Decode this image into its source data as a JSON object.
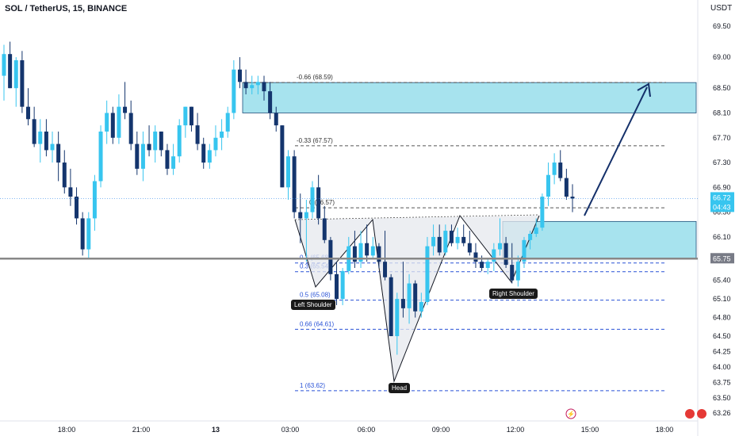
{
  "header": {
    "title": "SOL / TetherUS, 15, BINANCE",
    "currency": "USDT"
  },
  "colors": {
    "up": "#37c5ef",
    "down": "#14356d",
    "zone": "#a7e3ee",
    "zone_border": "#1f4e7a",
    "fib": "#2952d6",
    "price_line": "#3b8eea"
  },
  "badges": {
    "current_price": "66.72",
    "countdown": "04:43",
    "support": "65.75"
  },
  "labels": {
    "left_shoulder": "Left Shoulder",
    "head": "Head",
    "right_shoulder": "Right Shoulder"
  },
  "chart_data": {
    "type": "candlestick",
    "y_ticks": [
      "69.50",
      "69.00",
      "68.50",
      "68.10",
      "67.70",
      "67.30",
      "66.90",
      "66.50",
      "66.10",
      "65.75",
      "65.40",
      "65.10",
      "64.80",
      "64.50",
      "64.25",
      "64.00",
      "63.75",
      "63.50",
      "63.26"
    ],
    "x_ticks": [
      "18:00",
      "21:00",
      "13",
      "03:00",
      "06:00",
      "09:00",
      "12:00",
      "15:00",
      "18:00"
    ],
    "fib_levels": [
      {
        "label": "-0.66 (68.59)",
        "price": 68.59
      },
      {
        "label": "-0.33 (67.57)",
        "price": 67.57
      },
      {
        "label": "0 (66.57)",
        "price": 66.57
      },
      {
        "label": "0.3 (65.68)",
        "price": 65.68
      },
      {
        "label": "0.3 (65.54)",
        "price": 65.54
      },
      {
        "label": "0.5 (65.08)",
        "price": 65.08
      },
      {
        "label": "0.66 (64.61)",
        "price": 64.61
      },
      {
        "label": "1 (63.62)",
        "price": 63.62
      }
    ],
    "zones": [
      {
        "name": "target",
        "top": 68.59,
        "bottom": 68.1
      },
      {
        "name": "breakout",
        "top": 66.35,
        "bottom": 65.75
      }
    ],
    "current_price": 66.72,
    "support_price": 65.75,
    "candles": [
      {
        "o": 68.7,
        "h": 69.2,
        "l": 68.3,
        "c": 69.05
      },
      {
        "o": 69.05,
        "h": 69.25,
        "l": 68.5,
        "c": 68.5
      },
      {
        "o": 68.5,
        "h": 69.0,
        "l": 68.2,
        "c": 68.95
      },
      {
        "o": 68.95,
        "h": 69.1,
        "l": 68.1,
        "c": 68.2
      },
      {
        "o": 68.2,
        "h": 68.5,
        "l": 67.9,
        "c": 68.0
      },
      {
        "o": 68.0,
        "h": 68.2,
        "l": 67.55,
        "c": 67.6
      },
      {
        "o": 67.6,
        "h": 68.0,
        "l": 67.3,
        "c": 67.8
      },
      {
        "o": 67.8,
        "h": 68.0,
        "l": 67.4,
        "c": 67.5
      },
      {
        "o": 67.5,
        "h": 67.8,
        "l": 67.3,
        "c": 67.6
      },
      {
        "o": 67.6,
        "h": 67.8,
        "l": 67.0,
        "c": 67.3
      },
      {
        "o": 67.3,
        "h": 67.5,
        "l": 66.8,
        "c": 66.9
      },
      {
        "o": 66.9,
        "h": 67.2,
        "l": 66.6,
        "c": 66.75
      },
      {
        "o": 66.75,
        "h": 66.9,
        "l": 66.3,
        "c": 66.4
      },
      {
        "o": 66.4,
        "h": 66.5,
        "l": 65.8,
        "c": 65.9
      },
      {
        "o": 65.9,
        "h": 66.5,
        "l": 65.75,
        "c": 66.4
      },
      {
        "o": 66.4,
        "h": 67.1,
        "l": 66.2,
        "c": 67.0
      },
      {
        "o": 67.0,
        "h": 67.9,
        "l": 66.9,
        "c": 67.8
      },
      {
        "o": 67.8,
        "h": 68.3,
        "l": 67.6,
        "c": 68.1
      },
      {
        "o": 68.1,
        "h": 68.2,
        "l": 67.6,
        "c": 67.7
      },
      {
        "o": 67.7,
        "h": 68.4,
        "l": 67.6,
        "c": 68.2
      },
      {
        "o": 68.2,
        "h": 68.6,
        "l": 68.0,
        "c": 68.1
      },
      {
        "o": 68.1,
        "h": 68.3,
        "l": 67.5,
        "c": 67.6
      },
      {
        "o": 67.6,
        "h": 67.8,
        "l": 67.1,
        "c": 67.2
      },
      {
        "o": 67.2,
        "h": 67.8,
        "l": 67.0,
        "c": 67.6
      },
      {
        "o": 67.6,
        "h": 67.9,
        "l": 67.4,
        "c": 67.5
      },
      {
        "o": 67.5,
        "h": 67.9,
        "l": 67.3,
        "c": 67.8
      },
      {
        "o": 67.8,
        "h": 67.8,
        "l": 67.4,
        "c": 67.5
      },
      {
        "o": 67.5,
        "h": 67.6,
        "l": 67.1,
        "c": 67.2
      },
      {
        "o": 67.2,
        "h": 67.6,
        "l": 67.1,
        "c": 67.4
      },
      {
        "o": 67.4,
        "h": 68.0,
        "l": 67.3,
        "c": 67.9
      },
      {
        "o": 67.9,
        "h": 68.2,
        "l": 67.7,
        "c": 68.2
      },
      {
        "o": 68.2,
        "h": 68.2,
        "l": 67.8,
        "c": 67.9
      },
      {
        "o": 67.9,
        "h": 68.1,
        "l": 67.5,
        "c": 67.6
      },
      {
        "o": 67.6,
        "h": 67.7,
        "l": 67.2,
        "c": 67.3
      },
      {
        "o": 67.3,
        "h": 67.6,
        "l": 67.2,
        "c": 67.5
      },
      {
        "o": 67.5,
        "h": 67.9,
        "l": 67.4,
        "c": 67.7
      },
      {
        "o": 67.7,
        "h": 68.0,
        "l": 67.5,
        "c": 67.8
      },
      {
        "o": 67.8,
        "h": 68.2,
        "l": 67.7,
        "c": 68.1
      },
      {
        "o": 68.1,
        "h": 68.95,
        "l": 68.0,
        "c": 68.8
      },
      {
        "o": 68.8,
        "h": 69.0,
        "l": 68.5,
        "c": 68.6
      },
      {
        "o": 68.6,
        "h": 68.8,
        "l": 68.4,
        "c": 68.5
      },
      {
        "o": 68.5,
        "h": 68.7,
        "l": 68.4,
        "c": 68.55
      },
      {
        "o": 68.55,
        "h": 68.7,
        "l": 68.4,
        "c": 68.6
      },
      {
        "o": 68.6,
        "h": 68.7,
        "l": 68.3,
        "c": 68.45
      },
      {
        "o": 68.45,
        "h": 68.6,
        "l": 68.0,
        "c": 68.1
      },
      {
        "o": 68.1,
        "h": 68.2,
        "l": 67.8,
        "c": 67.9
      },
      {
        "o": 67.9,
        "h": 67.9,
        "l": 66.9,
        "c": 66.9
      },
      {
        "o": 66.9,
        "h": 67.5,
        "l": 66.7,
        "c": 67.4
      },
      {
        "o": 67.4,
        "h": 67.5,
        "l": 66.4,
        "c": 66.5
      },
      {
        "o": 66.5,
        "h": 66.8,
        "l": 66.0,
        "c": 66.4
      },
      {
        "o": 66.4,
        "h": 66.7,
        "l": 65.7,
        "c": 66.5
      },
      {
        "o": 66.5,
        "h": 67.0,
        "l": 66.4,
        "c": 66.9
      },
      {
        "o": 66.9,
        "h": 67.1,
        "l": 66.3,
        "c": 66.4
      },
      {
        "o": 66.4,
        "h": 66.6,
        "l": 66.0,
        "c": 66.05
      },
      {
        "o": 66.05,
        "h": 66.1,
        "l": 65.4,
        "c": 65.5
      },
      {
        "o": 65.5,
        "h": 65.7,
        "l": 65.0,
        "c": 65.1
      },
      {
        "o": 65.1,
        "h": 65.6,
        "l": 65.0,
        "c": 65.55
      },
      {
        "o": 65.55,
        "h": 66.1,
        "l": 65.5,
        "c": 65.95
      },
      {
        "o": 65.95,
        "h": 66.2,
        "l": 65.6,
        "c": 65.7
      },
      {
        "o": 65.7,
        "h": 66.2,
        "l": 65.6,
        "c": 66.0
      },
      {
        "o": 66.0,
        "h": 66.3,
        "l": 65.7,
        "c": 65.8
      },
      {
        "o": 65.8,
        "h": 66.1,
        "l": 65.75,
        "c": 65.95
      },
      {
        "o": 65.95,
        "h": 66.0,
        "l": 65.6,
        "c": 65.7
      },
      {
        "o": 65.7,
        "h": 66.2,
        "l": 65.4,
        "c": 65.45
      },
      {
        "o": 65.45,
        "h": 65.5,
        "l": 64.5,
        "c": 64.5
      },
      {
        "o": 64.5,
        "h": 65.2,
        "l": 64.2,
        "c": 65.1
      },
      {
        "o": 65.1,
        "h": 65.7,
        "l": 64.8,
        "c": 64.95
      },
      {
        "o": 64.95,
        "h": 65.5,
        "l": 64.7,
        "c": 65.35
      },
      {
        "o": 65.35,
        "h": 65.4,
        "l": 64.8,
        "c": 64.9
      },
      {
        "o": 64.9,
        "h": 65.2,
        "l": 64.8,
        "c": 65.05
      },
      {
        "o": 65.05,
        "h": 66.1,
        "l": 65.0,
        "c": 65.95
      },
      {
        "o": 65.95,
        "h": 66.3,
        "l": 65.8,
        "c": 66.1
      },
      {
        "o": 66.1,
        "h": 66.3,
        "l": 65.8,
        "c": 65.85
      },
      {
        "o": 65.85,
        "h": 66.3,
        "l": 65.8,
        "c": 66.2
      },
      {
        "o": 66.2,
        "h": 66.3,
        "l": 65.95,
        "c": 66.0
      },
      {
        "o": 66.0,
        "h": 66.25,
        "l": 65.9,
        "c": 66.1
      },
      {
        "o": 66.1,
        "h": 66.3,
        "l": 65.95,
        "c": 66.0
      },
      {
        "o": 66.0,
        "h": 66.2,
        "l": 65.8,
        "c": 65.85
      },
      {
        "o": 65.85,
        "h": 66.0,
        "l": 65.6,
        "c": 65.7
      },
      {
        "o": 65.7,
        "h": 65.8,
        "l": 65.55,
        "c": 65.6
      },
      {
        "o": 65.6,
        "h": 65.75,
        "l": 65.5,
        "c": 65.7
      },
      {
        "o": 65.7,
        "h": 66.0,
        "l": 65.55,
        "c": 65.9
      },
      {
        "o": 65.9,
        "h": 66.4,
        "l": 65.8,
        "c": 66.0
      },
      {
        "o": 66.0,
        "h": 66.1,
        "l": 65.6,
        "c": 65.65
      },
      {
        "o": 65.65,
        "h": 66.0,
        "l": 65.35,
        "c": 65.4
      },
      {
        "o": 65.4,
        "h": 65.8,
        "l": 65.3,
        "c": 65.7
      },
      {
        "o": 65.7,
        "h": 66.1,
        "l": 65.6,
        "c": 66.05
      },
      {
        "o": 66.05,
        "h": 66.2,
        "l": 65.9,
        "c": 66.15
      },
      {
        "o": 66.15,
        "h": 66.4,
        "l": 66.1,
        "c": 66.25
      },
      {
        "o": 66.25,
        "h": 66.8,
        "l": 66.2,
        "c": 66.75
      },
      {
        "o": 66.75,
        "h": 67.3,
        "l": 66.6,
        "c": 67.1
      },
      {
        "o": 67.1,
        "h": 67.45,
        "l": 66.95,
        "c": 67.3
      },
      {
        "o": 67.3,
        "h": 67.5,
        "l": 67.0,
        "c": 67.05
      },
      {
        "o": 67.05,
        "h": 67.2,
        "l": 66.7,
        "c": 66.75
      },
      {
        "o": 66.75,
        "h": 66.95,
        "l": 66.5,
        "c": 66.72
      }
    ],
    "pattern_path": [
      [
        66.2,
        "03:00"
      ],
      [
        65.25,
        "LS"
      ],
      [
        66.3,
        "neck1"
      ],
      [
        63.75,
        "H"
      ],
      [
        66.3,
        "neck2"
      ],
      [
        65.35,
        "RS"
      ],
      [
        66.4,
        "brk"
      ]
    ]
  }
}
